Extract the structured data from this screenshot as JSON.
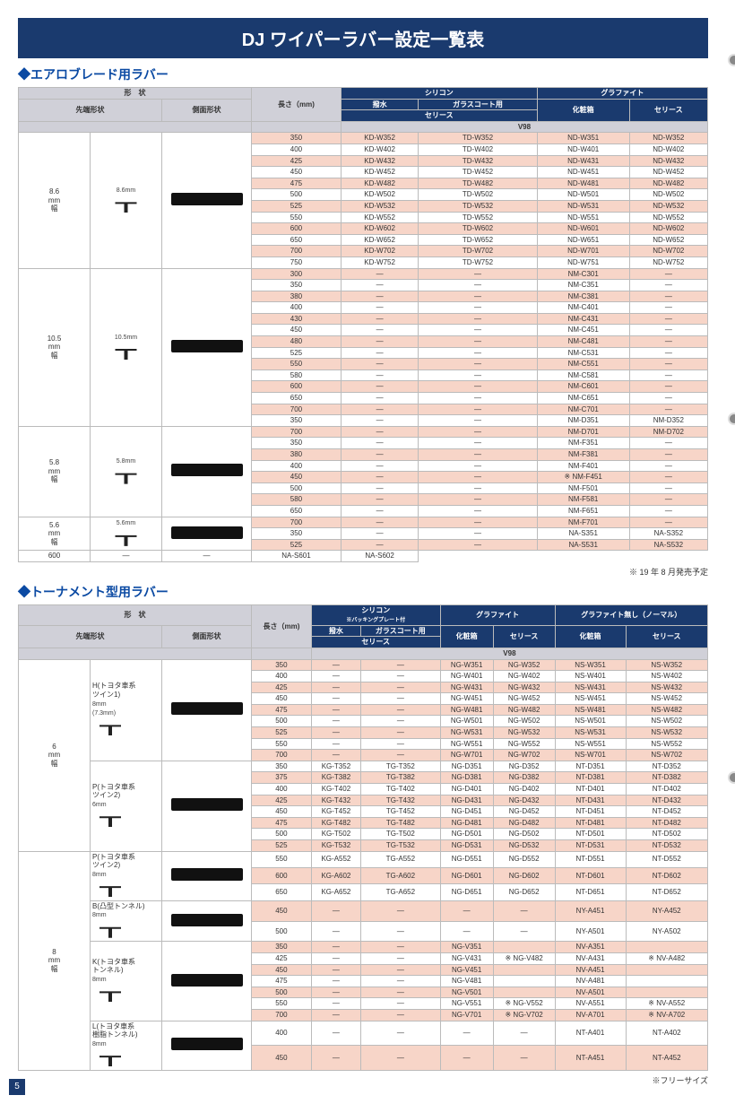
{
  "title": "DJ ワイパーラバー設定一覧表",
  "section1_title": "◆エアロブレード用ラバー",
  "section2_title": "◆トーナメント型用ラバー",
  "footer1": "※ 19 年 8 月発売予定",
  "footer2": "※フリーサイズ",
  "page_number": "5",
  "headers": {
    "shape": "形　状",
    "tip": "先端形状",
    "side": "側面形状",
    "length": "長さ（mm)",
    "silicon": "シリコン",
    "silicon_note": "※バッキングプレート付",
    "graphite": "グラファイト",
    "normal": "グラファイト無し（ノーマル）",
    "hassui": "撥水",
    "glass": "ガラスコート用",
    "series": "セリース",
    "box": "化粧箱",
    "v98": "V98"
  },
  "widths1": [
    {
      "label": "8.6\nmm\n幅",
      "dim": "8.6mm"
    },
    {
      "label": "10.5\nmm\n幅",
      "dim": "10.5mm"
    },
    {
      "label": "5.8\nmm\n幅",
      "dim": "5.8mm"
    },
    {
      "label": "5.6\nmm\n幅",
      "dim": "5.6mm"
    }
  ],
  "table1": [
    {
      "len": "350",
      "c1": "KD-W352",
      "c2": "TD-W352",
      "c3": "ND-W351",
      "c4": "ND-W352",
      "g": 0
    },
    {
      "len": "400",
      "c1": "KD-W402",
      "c2": "TD-W402",
      "c3": "ND-W401",
      "c4": "ND-W402",
      "g": 0
    },
    {
      "len": "425",
      "c1": "KD-W432",
      "c2": "TD-W432",
      "c3": "ND-W431",
      "c4": "ND-W432",
      "g": 0
    },
    {
      "len": "450",
      "c1": "KD-W452",
      "c2": "TD-W452",
      "c3": "ND-W451",
      "c4": "ND-W452",
      "g": 0
    },
    {
      "len": "475",
      "c1": "KD-W482",
      "c2": "TD-W482",
      "c3": "ND-W481",
      "c4": "ND-W482",
      "g": 0
    },
    {
      "len": "500",
      "c1": "KD-W502",
      "c2": "TD-W502",
      "c3": "ND-W501",
      "c4": "ND-W502",
      "g": 0
    },
    {
      "len": "525",
      "c1": "KD-W532",
      "c2": "TD-W532",
      "c3": "ND-W531",
      "c4": "ND-W532",
      "g": 0
    },
    {
      "len": "550",
      "c1": "KD-W552",
      "c2": "TD-W552",
      "c3": "ND-W551",
      "c4": "ND-W552",
      "g": 0
    },
    {
      "len": "600",
      "c1": "KD-W602",
      "c2": "TD-W602",
      "c3": "ND-W601",
      "c4": "ND-W602",
      "g": 0
    },
    {
      "len": "650",
      "c1": "KD-W652",
      "c2": "TD-W652",
      "c3": "ND-W651",
      "c4": "ND-W652",
      "g": 0
    },
    {
      "len": "700",
      "c1": "KD-W702",
      "c2": "TD-W702",
      "c3": "ND-W701",
      "c4": "ND-W702",
      "g": 0
    },
    {
      "len": "750",
      "c1": "KD-W752",
      "c2": "TD-W752",
      "c3": "ND-W751",
      "c4": "ND-W752",
      "g": 0
    },
    {
      "len": "300",
      "c1": "—",
      "c2": "—",
      "c3": "NM-C301",
      "c4": "—",
      "g": 1
    },
    {
      "len": "350",
      "c1": "—",
      "c2": "—",
      "c3": "NM-C351",
      "c4": "—",
      "g": 1
    },
    {
      "len": "380",
      "c1": "—",
      "c2": "—",
      "c3": "NM-C381",
      "c4": "—",
      "g": 1
    },
    {
      "len": "400",
      "c1": "—",
      "c2": "—",
      "c3": "NM-C401",
      "c4": "—",
      "g": 1
    },
    {
      "len": "430",
      "c1": "—",
      "c2": "—",
      "c3": "NM-C431",
      "c4": "—",
      "g": 1
    },
    {
      "len": "450",
      "c1": "—",
      "c2": "—",
      "c3": "NM-C451",
      "c4": "—",
      "g": 1
    },
    {
      "len": "480",
      "c1": "—",
      "c2": "—",
      "c3": "NM-C481",
      "c4": "—",
      "g": 1
    },
    {
      "len": "525",
      "c1": "—",
      "c2": "—",
      "c3": "NM-C531",
      "c4": "—",
      "g": 1
    },
    {
      "len": "550",
      "c1": "—",
      "c2": "—",
      "c3": "NM-C551",
      "c4": "—",
      "g": 1
    },
    {
      "len": "580",
      "c1": "—",
      "c2": "—",
      "c3": "NM-C581",
      "c4": "—",
      "g": 1
    },
    {
      "len": "600",
      "c1": "—",
      "c2": "—",
      "c3": "NM-C601",
      "c4": "—",
      "g": 1
    },
    {
      "len": "650",
      "c1": "—",
      "c2": "—",
      "c3": "NM-C651",
      "c4": "—",
      "g": 1
    },
    {
      "len": "700",
      "c1": "—",
      "c2": "—",
      "c3": "NM-C701",
      "c4": "—",
      "g": 1
    },
    {
      "len": "350",
      "c1": "—",
      "c2": "—",
      "c3": "NM-D351",
      "c4": "NM-D352",
      "g": 1
    },
    {
      "len": "700",
      "c1": "—",
      "c2": "—",
      "c3": "NM-D701",
      "c4": "NM-D702",
      "g": 1
    },
    {
      "len": "350",
      "c1": "—",
      "c2": "—",
      "c3": "NM-F351",
      "c4": "—",
      "g": 2
    },
    {
      "len": "380",
      "c1": "—",
      "c2": "—",
      "c3": "NM-F381",
      "c4": "—",
      "g": 2
    },
    {
      "len": "400",
      "c1": "—",
      "c2": "—",
      "c3": "NM-F401",
      "c4": "—",
      "g": 2
    },
    {
      "len": "450",
      "c1": "—",
      "c2": "—",
      "c3": "※ NM-F451",
      "c4": "—",
      "g": 2
    },
    {
      "len": "500",
      "c1": "—",
      "c2": "—",
      "c3": "NM-F501",
      "c4": "—",
      "g": 2
    },
    {
      "len": "580",
      "c1": "—",
      "c2": "—",
      "c3": "NM-F581",
      "c4": "—",
      "g": 2
    },
    {
      "len": "650",
      "c1": "—",
      "c2": "—",
      "c3": "NM-F651",
      "c4": "—",
      "g": 2
    },
    {
      "len": "700",
      "c1": "—",
      "c2": "—",
      "c3": "NM-F701",
      "c4": "—",
      "g": 2
    },
    {
      "len": "350",
      "c1": "—",
      "c2": "—",
      "c3": "NA-S351",
      "c4": "NA-S352",
      "g": 3
    },
    {
      "len": "525",
      "c1": "—",
      "c2": "—",
      "c3": "NA-S531",
      "c4": "NA-S532",
      "g": 3
    },
    {
      "len": "600",
      "c1": "—",
      "c2": "—",
      "c3": "NA-S601",
      "c4": "NA-S602",
      "g": 3
    }
  ],
  "widths2": [
    {
      "label": "6\nmm\n幅",
      "types": [
        "H(トヨタ車系\nツイン1)",
        "P(トヨタ車系\nツイン2)"
      ],
      "dims": [
        "8mm\n(7.3mm)",
        "6mm"
      ]
    },
    {
      "label": "8\nmm\n幅",
      "types": [
        "P(トヨタ車系\nツイン2)",
        "B(凸型トンネル)",
        "K(トヨタ車系\nトンネル)",
        "L(トヨタ車系\n樹脂トンネル)"
      ],
      "dims": [
        "8mm",
        "8mm",
        "8mm",
        "8mm"
      ]
    }
  ],
  "table2": [
    {
      "len": "350",
      "c1": "—",
      "c2": "—",
      "c3": "NG-W351",
      "c4": "NG-W352",
      "c5": "NS-W351",
      "c6": "NS-W352"
    },
    {
      "len": "400",
      "c1": "—",
      "c2": "—",
      "c3": "NG-W401",
      "c4": "NG-W402",
      "c5": "NS-W401",
      "c6": "NS-W402"
    },
    {
      "len": "425",
      "c1": "—",
      "c2": "—",
      "c3": "NG-W431",
      "c4": "NG-W432",
      "c5": "NS-W431",
      "c6": "NS-W432"
    },
    {
      "len": "450",
      "c1": "—",
      "c2": "—",
      "c3": "NG-W451",
      "c4": "NG-W452",
      "c5": "NS-W451",
      "c6": "NS-W452"
    },
    {
      "len": "475",
      "c1": "—",
      "c2": "—",
      "c3": "NG-W481",
      "c4": "NG-W482",
      "c5": "NS-W481",
      "c6": "NS-W482"
    },
    {
      "len": "500",
      "c1": "—",
      "c2": "—",
      "c3": "NG-W501",
      "c4": "NG-W502",
      "c5": "NS-W501",
      "c6": "NS-W502"
    },
    {
      "len": "525",
      "c1": "—",
      "c2": "—",
      "c3": "NG-W531",
      "c4": "NG-W532",
      "c5": "NS-W531",
      "c6": "NS-W532"
    },
    {
      "len": "550",
      "c1": "—",
      "c2": "—",
      "c3": "NG-W551",
      "c4": "NG-W552",
      "c5": "NS-W551",
      "c6": "NS-W552"
    },
    {
      "len": "700",
      "c1": "—",
      "c2": "—",
      "c3": "NG-W701",
      "c4": "NG-W702",
      "c5": "NS-W701",
      "c6": "NS-W702"
    },
    {
      "len": "350",
      "c1": "KG-T352",
      "c2": "TG-T352",
      "c3": "NG-D351",
      "c4": "NG-D352",
      "c5": "NT-D351",
      "c6": "NT-D352"
    },
    {
      "len": "375",
      "c1": "KG-T382",
      "c2": "TG-T382",
      "c3": "NG-D381",
      "c4": "NG-D382",
      "c5": "NT-D381",
      "c6": "NT-D382"
    },
    {
      "len": "400",
      "c1": "KG-T402",
      "c2": "TG-T402",
      "c3": "NG-D401",
      "c4": "NG-D402",
      "c5": "NT-D401",
      "c6": "NT-D402"
    },
    {
      "len": "425",
      "c1": "KG-T432",
      "c2": "TG-T432",
      "c3": "NG-D431",
      "c4": "NG-D432",
      "c5": "NT-D431",
      "c6": "NT-D432"
    },
    {
      "len": "450",
      "c1": "KG-T452",
      "c2": "TG-T452",
      "c3": "NG-D451",
      "c4": "NG-D452",
      "c5": "NT-D451",
      "c6": "NT-D452"
    },
    {
      "len": "475",
      "c1": "KG-T482",
      "c2": "TG-T482",
      "c3": "NG-D481",
      "c4": "NG-D482",
      "c5": "NT-D481",
      "c6": "NT-D482"
    },
    {
      "len": "500",
      "c1": "KG-T502",
      "c2": "TG-T502",
      "c3": "NG-D501",
      "c4": "NG-D502",
      "c5": "NT-D501",
      "c6": "NT-D502"
    },
    {
      "len": "525",
      "c1": "KG-T532",
      "c2": "TG-T532",
      "c3": "NG-D531",
      "c4": "NG-D532",
      "c5": "NT-D531",
      "c6": "NT-D532"
    },
    {
      "len": "550",
      "c1": "KG-A552",
      "c2": "TG-A552",
      "c3": "NG-D551",
      "c4": "NG-D552",
      "c5": "NT-D551",
      "c6": "NT-D552"
    },
    {
      "len": "600",
      "c1": "KG-A602",
      "c2": "TG-A602",
      "c3": "NG-D601",
      "c4": "NG-D602",
      "c5": "NT-D601",
      "c6": "NT-D602"
    },
    {
      "len": "650",
      "c1": "KG-A652",
      "c2": "TG-A652",
      "c3": "NG-D651",
      "c4": "NG-D652",
      "c5": "NT-D651",
      "c6": "NT-D652"
    },
    {
      "len": "450",
      "c1": "—",
      "c2": "—",
      "c3": "—",
      "c4": "—",
      "c5": "NY-A451",
      "c6": "NY-A452"
    },
    {
      "len": "500",
      "c1": "—",
      "c2": "—",
      "c3": "—",
      "c4": "—",
      "c5": "NY-A501",
      "c6": "NY-A502"
    },
    {
      "len": "350",
      "c1": "—",
      "c2": "—",
      "c3": "NG-V351",
      "c4": "",
      "c5": "NV-A351",
      "c6": ""
    },
    {
      "len": "425",
      "c1": "—",
      "c2": "—",
      "c3": "NG-V431",
      "c4": "※ NG-V482",
      "c5": "NV-A431",
      "c6": "※ NV-A482"
    },
    {
      "len": "450",
      "c1": "—",
      "c2": "—",
      "c3": "NG-V451",
      "c4": "",
      "c5": "NV-A451",
      "c6": ""
    },
    {
      "len": "475",
      "c1": "—",
      "c2": "—",
      "c3": "NG-V481",
      "c4": "",
      "c5": "NV-A481",
      "c6": ""
    },
    {
      "len": "500",
      "c1": "—",
      "c2": "—",
      "c3": "NG-V501",
      "c4": "",
      "c5": "NV-A501",
      "c6": ""
    },
    {
      "len": "550",
      "c1": "—",
      "c2": "—",
      "c3": "NG-V551",
      "c4": "※ NG-V552",
      "c5": "NV-A551",
      "c6": "※ NV-A552"
    },
    {
      "len": "700",
      "c1": "—",
      "c2": "—",
      "c3": "NG-V701",
      "c4": "※ NG-V702",
      "c5": "NV-A701",
      "c6": "※ NV-A702"
    },
    {
      "len": "400",
      "c1": "—",
      "c2": "—",
      "c3": "—",
      "c4": "—",
      "c5": "NT-A401",
      "c6": "NT-A402"
    },
    {
      "len": "450",
      "c1": "—",
      "c2": "—",
      "c3": "—",
      "c4": "—",
      "c5": "NT-A451",
      "c6": "NT-A452"
    }
  ]
}
